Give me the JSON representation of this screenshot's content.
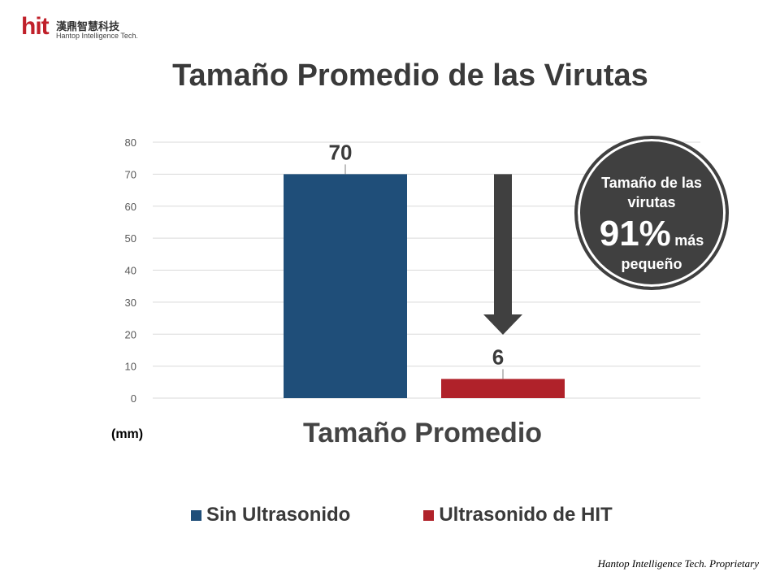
{
  "logo": {
    "brand": "hit",
    "cn": "漢鼎智慧科技",
    "en": "Hantop Intelligence Tech."
  },
  "title": "Tamaño Promedio de las Virutas",
  "unit_label": "(mm)",
  "badge": {
    "line1": "Tamaño de las virutas",
    "percent": "91%",
    "suffix": "más",
    "line3": "pequeño"
  },
  "footer": "Hantop Intelligence Tech. Proprietary",
  "colors": {
    "series1": "#1f4e79",
    "series2": "#b0222a",
    "arrow": "#404040",
    "grid": "#d9d9d9"
  },
  "chart_data": {
    "type": "bar",
    "categories": [
      "Tamaño Promedio"
    ],
    "series": [
      {
        "name": "Sin Ultrasonido",
        "values": [
          70
        ]
      },
      {
        "name": "Ultrasonido de HIT",
        "values": [
          6
        ]
      }
    ],
    "ylim": [
      0,
      80
    ],
    "yticks": [
      0,
      10,
      20,
      30,
      40,
      50,
      60,
      70,
      80
    ],
    "grid": true,
    "legend": "bottom"
  }
}
